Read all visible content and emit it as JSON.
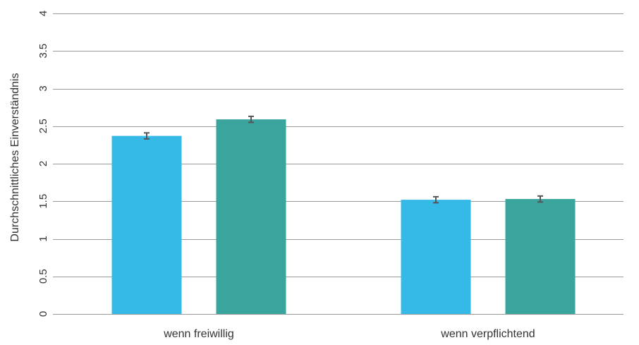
{
  "chart_data": {
    "type": "bar",
    "title": "",
    "xlabel": "",
    "ylabel": "Durchschnittliches Einverständnis",
    "categories": [
      "wenn freiwillig",
      "wenn verpflichtend"
    ],
    "series": [
      {
        "color": "#35b9e6",
        "values": [
          2.37,
          1.52
        ],
        "errors": [
          0.04,
          0.04
        ]
      },
      {
        "color": "#3aa59d",
        "values": [
          2.59,
          1.53
        ],
        "errors": [
          0.04,
          0.04
        ]
      }
    ],
    "ylim": [
      0,
      4
    ],
    "yticks": [
      0,
      0.5,
      1,
      1.5,
      2,
      2.5,
      3,
      3.5,
      4
    ],
    "ytick_labels": [
      "0",
      "0.5",
      "1",
      "1.5",
      "2",
      "2.5",
      "3",
      "3.5",
      "4"
    ],
    "grid": true,
    "legend": "none",
    "colors": {
      "grid": "#9a9a9a",
      "text": "#333333",
      "errorbar": "#555555"
    }
  }
}
